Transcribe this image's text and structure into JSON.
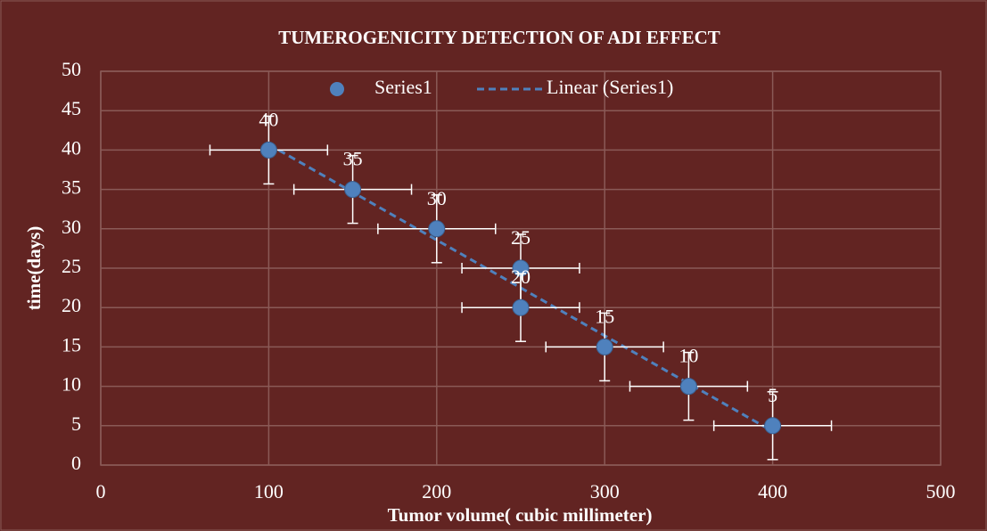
{
  "chart_data": {
    "type": "scatter",
    "title": "TUMEROGENICITY DETECTION OF ADI EFFECT",
    "x_label": "Tumor volume( cubic millimeter)",
    "y_label": "time(days)",
    "x": [
      100,
      150,
      200,
      250,
      250,
      300,
      350,
      400
    ],
    "series": [
      {
        "name": "Series1",
        "color": "#4f81bd",
        "values": [
          40,
          35,
          30,
          25,
          20,
          15,
          10,
          5
        ]
      }
    ],
    "x_error": 35,
    "y_error": 4.3,
    "trendline": {
      "name": "Linear (Series1)",
      "color": "#4f81bd"
    },
    "xlim": [
      0,
      500
    ],
    "xticks": [
      0,
      100,
      200,
      300,
      400,
      500
    ],
    "ylim": [
      0,
      50
    ],
    "yticks": [
      0,
      5,
      10,
      15,
      20,
      25,
      30,
      35,
      40,
      45,
      50
    ],
    "grid": true,
    "legend": "top"
  }
}
